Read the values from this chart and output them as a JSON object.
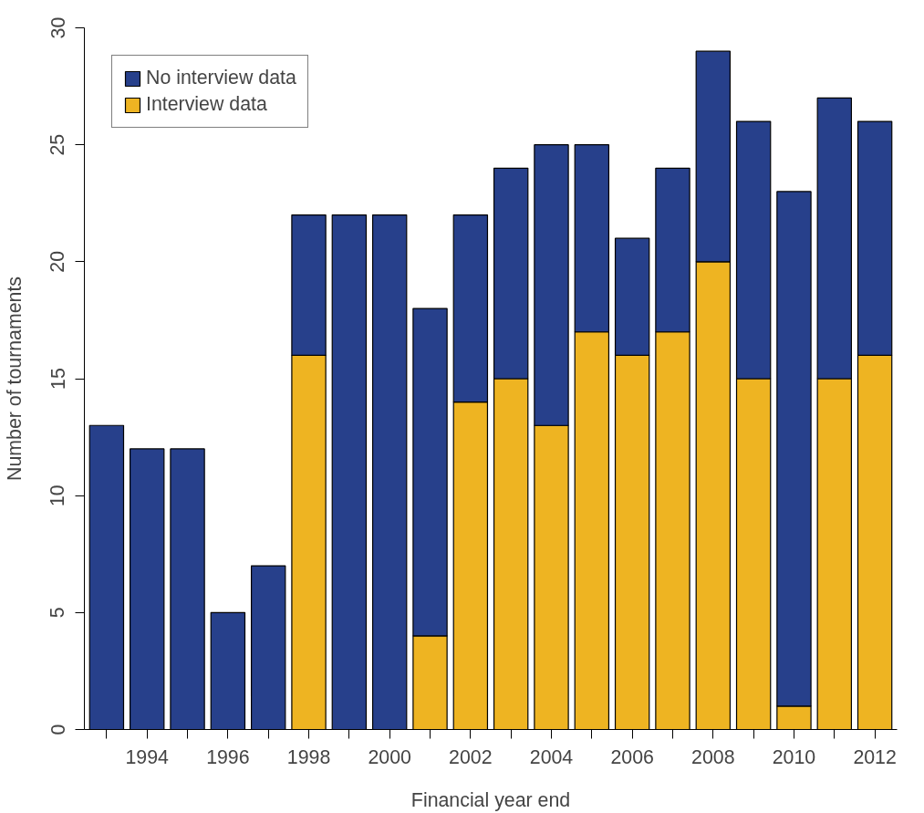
{
  "chart_data": {
    "type": "bar",
    "stacked": true,
    "xlabel": "Financial year end",
    "ylabel": "Number of tournaments",
    "x": [
      1993,
      1994,
      1995,
      1996,
      1997,
      1998,
      1999,
      2000,
      2001,
      2002,
      2003,
      2004,
      2005,
      2006,
      2007,
      2008,
      2009,
      2010,
      2011,
      2012
    ],
    "series": [
      {
        "name": "Interview data",
        "color": "#eeb422",
        "values": [
          0,
          0,
          0,
          0,
          0,
          16,
          0,
          0,
          4,
          14,
          15,
          13,
          17,
          16,
          17,
          20,
          15,
          1,
          15,
          16
        ]
      },
      {
        "name": "No interview data",
        "color": "#27408b",
        "values": [
          13,
          12,
          12,
          5,
          7,
          6,
          22,
          22,
          14,
          8,
          9,
          12,
          8,
          5,
          7,
          9,
          11,
          22,
          12,
          10
        ]
      }
    ],
    "xlim": [
      1992.45,
      2012.55
    ],
    "ylim": [
      0,
      30
    ],
    "xticks": [
      {
        "value": 1993,
        "label": null
      },
      1994,
      {
        "value": 1995,
        "label": null
      },
      1996,
      {
        "value": 1997,
        "label": null
      },
      1998,
      {
        "value": 1999,
        "label": null
      },
      2000,
      {
        "value": 2001,
        "label": null
      },
      2002,
      {
        "value": 2003,
        "label": null
      },
      2004,
      {
        "value": 2005,
        "label": null
      },
      2006,
      {
        "value": 2007,
        "label": null
      },
      2008,
      {
        "value": 2009,
        "label": null
      },
      2010,
      {
        "value": 2011,
        "label": null
      },
      2012
    ],
    "yticks": [
      0,
      5,
      10,
      15,
      20,
      25,
      30
    ],
    "grid": false,
    "legend": "top left"
  }
}
